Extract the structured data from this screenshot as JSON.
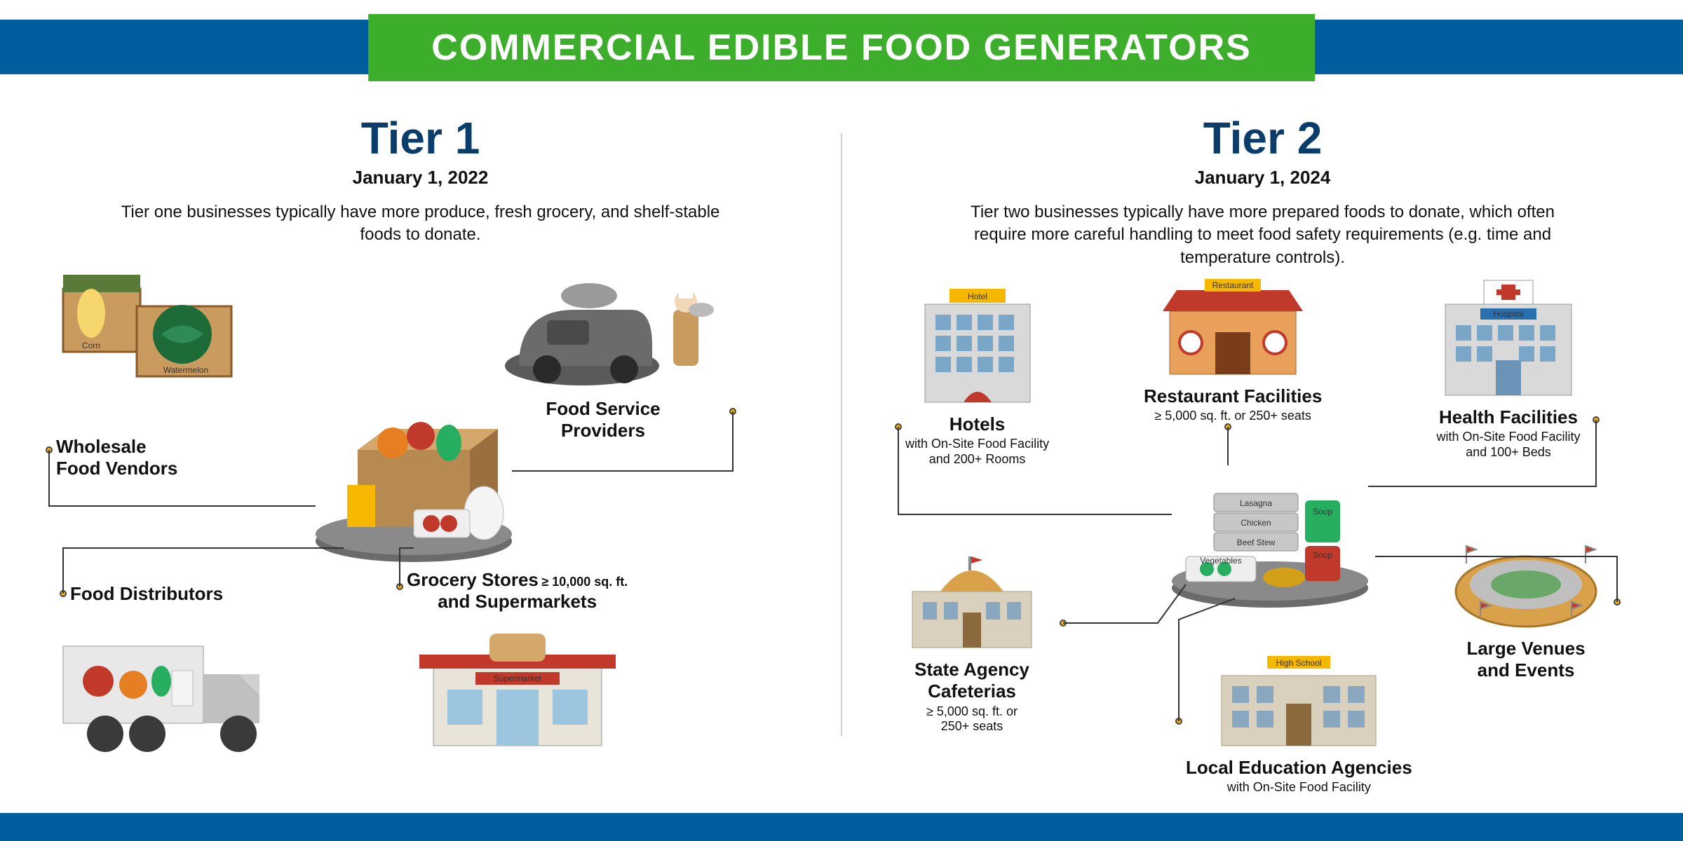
{
  "header": {
    "title": "COMMERCIAL EDIBLE FOOD GENERATORS",
    "banner_bg": "#3dae2b",
    "banner_fg": "#ffffff",
    "bar_color": "#005e9e"
  },
  "tier1": {
    "title": "Tier 1",
    "date": "January 1, 2022",
    "description": "Tier one businesses typically have more produce, fresh grocery, and shelf-stable foods to donate.",
    "title_color": "#0a3d6b",
    "items": {
      "wholesale": {
        "label": "Wholesale\nFood Vendors",
        "sub": ""
      },
      "food_service": {
        "label": "Food Service\nProviders",
        "sub": ""
      },
      "grocery": {
        "label": "Grocery Stores\nand Supermarkets",
        "sub": "≥ 10,000 sq. ft."
      },
      "distributors": {
        "label": "Food Distributors",
        "sub": ""
      }
    },
    "graphics": {
      "crate_labels": [
        "Corn",
        "Watermelon"
      ],
      "store_sign": "Supermarket"
    }
  },
  "tier2": {
    "title": "Tier 2",
    "date": "January 1, 2024",
    "description": "Tier two businesses typically have more prepared foods to donate, which often require more careful handling to meet food safety requirements (e.g. time and temperature controls).",
    "title_color": "#0a3d6b",
    "items": {
      "hotels": {
        "label": "Hotels",
        "sub": "with On-Site Food Facility\nand 200+ Rooms"
      },
      "restaurants": {
        "label": "Restaurant Facilities",
        "sub": "≥ 5,000 sq. ft. or 250+ seats"
      },
      "health": {
        "label": "Health Facilities",
        "sub": "with On-Site Food Facility\nand 100+ Beds"
      },
      "state_cafeteria": {
        "label": "State Agency\nCafeterias",
        "sub": "≥ 5,000 sq. ft. or\n250+ seats"
      },
      "large_venues": {
        "label": "Large Venues\nand Events",
        "sub": ""
      },
      "local_ed": {
        "label": "Local Education Agencies",
        "sub": "with On-Site Food Facility"
      }
    },
    "graphics": {
      "hotel_sign": "Hotel",
      "restaurant_sign": "Restaurant",
      "hospital_sign": "Hospital",
      "school_sign": "High School",
      "tray_labels": [
        "Lasagna",
        "Chicken",
        "Beef Stew",
        "Vegetables",
        "Soup",
        "Soup"
      ]
    }
  },
  "colors": {
    "dot_fill": "#f5b700",
    "dot_border": "#444444",
    "connector": "#333333",
    "divider": "#cfcfcf",
    "gray": "#6b6b6b",
    "red": "#c0392b",
    "orange": "#e67e22",
    "green": "#27ae60",
    "brown": "#8a5a2b",
    "lightgray": "#d0d0d0",
    "cream": "#f2e4c2",
    "dark": "#3a3a3a"
  }
}
